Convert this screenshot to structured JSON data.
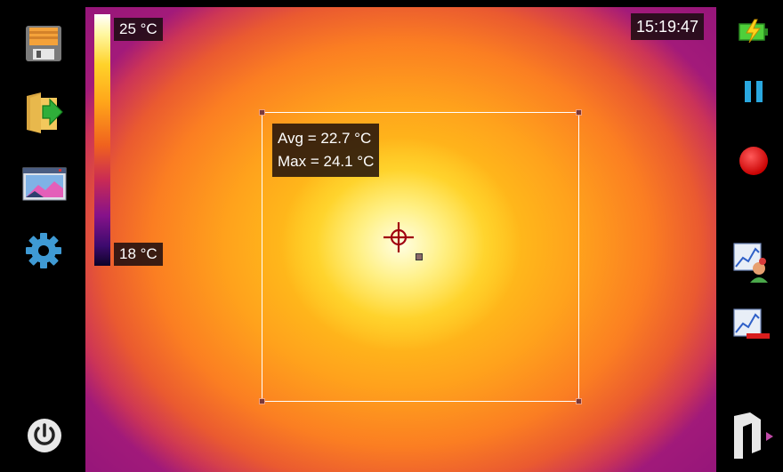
{
  "scale": {
    "max_label": "25 °C",
    "min_label": "18 °C"
  },
  "clock": {
    "time": "15:19:47"
  },
  "roi": {
    "avg_text": "Avg = 22.7 °C",
    "max_text": "Max = 24.1 °C"
  },
  "left_toolbar": {
    "icons": [
      "save-icon",
      "open-folder-icon",
      "image-gallery-icon",
      "settings-gear-icon",
      "power-icon"
    ]
  },
  "right_toolbar": {
    "icons": [
      "battery-charging-icon",
      "pause-icon",
      "record-icon",
      "analysis-chart-icon",
      "chart-remove-icon",
      "menu-arrow-icon"
    ]
  },
  "colors": {
    "accent_red": "#e00000",
    "pause_blue": "#2aa8e0",
    "battery_green": "#3cc23c"
  }
}
